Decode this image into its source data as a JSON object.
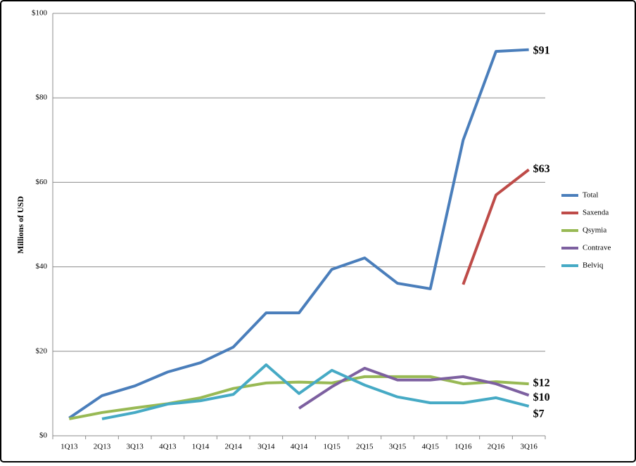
{
  "chart_data": {
    "type": "line",
    "y_label": "Millions of USD",
    "categories": [
      "1Q13",
      "2Q13",
      "3Q13",
      "4Q13",
      "1Q14",
      "2Q14",
      "3Q14",
      "4Q14",
      "1Q15",
      "2Q15",
      "3Q15",
      "4Q15",
      "1Q16",
      "2Q16",
      "3Q16"
    ],
    "series": [
      {
        "name": "Total",
        "color": "#4a7ebb",
        "values": [
          4.2,
          9.5,
          11.8,
          15.1,
          17.3,
          21,
          29.1,
          29.1,
          39.4,
          42.1,
          36.1,
          34.8,
          70,
          91,
          91.4
        ],
        "value_labels": [
          null,
          null,
          null,
          null,
          null,
          null,
          null,
          null,
          null,
          null,
          null,
          null,
          null,
          null,
          "$91"
        ]
      },
      {
        "name": "Saxenda",
        "color": "#be4b48",
        "values": [
          null,
          null,
          null,
          null,
          null,
          null,
          null,
          null,
          null,
          null,
          null,
          null,
          35.8,
          57,
          63
        ],
        "value_labels": [
          null,
          null,
          null,
          null,
          null,
          null,
          null,
          null,
          null,
          null,
          null,
          null,
          null,
          null,
          "$63"
        ]
      },
      {
        "name": "Qsymia",
        "color": "#98b954",
        "values": [
          4,
          5.5,
          6.6,
          7.6,
          9,
          11.2,
          12.5,
          12.7,
          12.5,
          14,
          14,
          14,
          12.3,
          12.8,
          12.3
        ],
        "value_labels": [
          null,
          null,
          null,
          null,
          null,
          null,
          null,
          null,
          null,
          null,
          null,
          null,
          null,
          null,
          "$12"
        ]
      },
      {
        "name": "Contrave",
        "color": "#7d60a0",
        "values": [
          null,
          null,
          null,
          null,
          null,
          null,
          null,
          6.5,
          11.6,
          16,
          13.2,
          13.2,
          14,
          12.3,
          9.6
        ],
        "value_labels": [
          null,
          null,
          null,
          null,
          null,
          null,
          null,
          null,
          null,
          null,
          null,
          null,
          null,
          null,
          "$10"
        ]
      },
      {
        "name": "Belviq",
        "color": "#46aac5",
        "values": [
          null,
          4,
          5.5,
          7.5,
          8.3,
          9.8,
          16.8,
          10,
          15.5,
          12,
          9.2,
          7.8,
          7.8,
          9,
          7
        ],
        "value_labels": [
          null,
          null,
          null,
          null,
          null,
          null,
          null,
          null,
          null,
          null,
          null,
          null,
          null,
          null,
          "$7"
        ]
      }
    ],
    "ylim": [
      0,
      100
    ],
    "yticks": [
      {
        "value": 0,
        "label": "$0"
      },
      {
        "value": 20,
        "label": "$20"
      },
      {
        "value": 40,
        "label": "$40"
      },
      {
        "value": 60,
        "label": "$60"
      },
      {
        "value": 80,
        "label": "$80"
      },
      {
        "value": 100,
        "label": "$100"
      }
    ],
    "grid": true,
    "legend": "right"
  }
}
